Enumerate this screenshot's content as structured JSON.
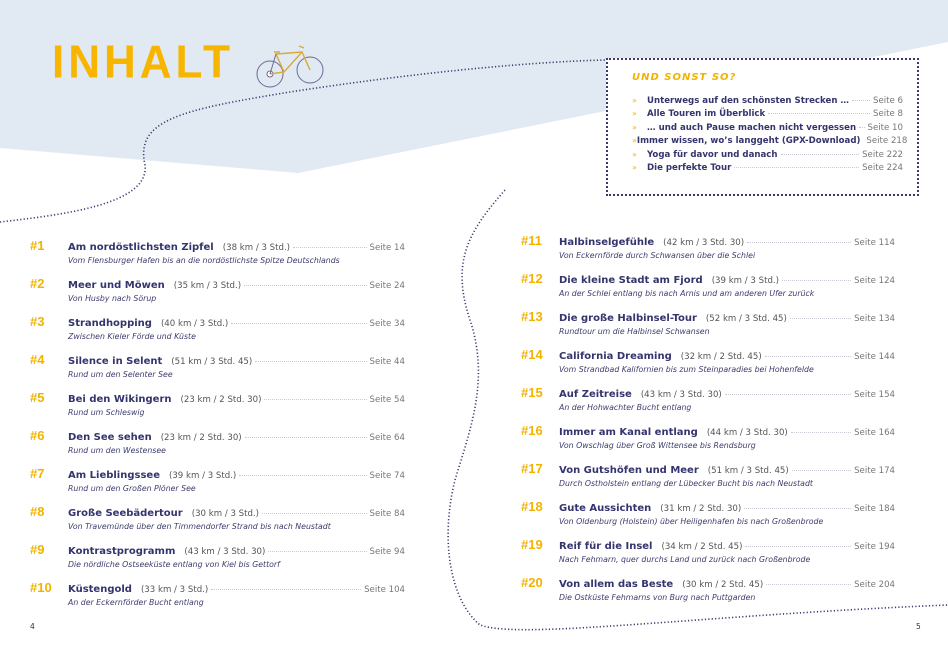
{
  "title": "INHALT",
  "colors": {
    "accent": "#f2b300",
    "text": "#34346e",
    "background_band": "#e1eaf2"
  },
  "illustration": "bicycle-icon",
  "extras": {
    "heading": "UND SONST SO?",
    "bullet": "»",
    "items": [
      {
        "title": "Unterwegs auf den schönsten Strecken …",
        "page": "Seite 6"
      },
      {
        "title": "Alle Touren im Überblick",
        "page": "Seite 8"
      },
      {
        "title": "… und auch Pause machen nicht vergessen",
        "page": "Seite 10"
      },
      {
        "title": "Immer wissen, wo’s langgeht (GPX-Download)",
        "page": "Seite 218"
      },
      {
        "title": "Yoga für davor und danach",
        "page": "Seite 222"
      },
      {
        "title": "Die perfekte Tour",
        "page": "Seite 224"
      }
    ]
  },
  "tours": [
    {
      "num": "#1",
      "title": "Am nordöstlichsten Zipfel",
      "info": "(38 km / 3 Std.)",
      "page": "Seite 14",
      "sub": "Vom Flensburger Hafen bis an die nordöstlichste Spitze Deutschlands"
    },
    {
      "num": "#2",
      "title": "Meer und Möwen",
      "info": "(35 km / 3 Std.)",
      "page": "Seite 24",
      "sub": "Von Husby nach Sörup"
    },
    {
      "num": "#3",
      "title": "Strandhopping",
      "info": "(40 km / 3 Std.)",
      "page": "Seite 34",
      "sub": "Zwischen Kieler Förde und Küste"
    },
    {
      "num": "#4",
      "title": "Silence in Selent",
      "info": "(51 km / 3 Std. 45)",
      "page": "Seite 44",
      "sub": "Rund um den Selenter See"
    },
    {
      "num": "#5",
      "title": "Bei den Wikingern",
      "info": "(23 km / 2 Std. 30)",
      "page": "Seite 54",
      "sub": "Rund um Schleswig"
    },
    {
      "num": "#6",
      "title": "Den See sehen",
      "info": "(23 km / 2 Std. 30)",
      "page": "Seite 64",
      "sub": "Rund um den Westensee"
    },
    {
      "num": "#7",
      "title": "Am Lieblingssee",
      "info": "(39 km / 3 Std.)",
      "page": "Seite 74",
      "sub": "Rund um den Großen Plöner See"
    },
    {
      "num": "#8",
      "title": "Große Seebädertour",
      "info": "(30 km / 3 Std.)",
      "page": "Seite 84",
      "sub": "Von Travemünde über den Timmendorfer Strand bis nach Neustadt"
    },
    {
      "num": "#9",
      "title": "Kontrastprogramm",
      "info": "(43 km / 3 Std. 30)",
      "page": "Seite 94",
      "sub": "Die nördliche Ostseeküste entlang von Kiel bis Gettorf"
    },
    {
      "num": "#10",
      "title": "Küstengold",
      "info": "(33 km / 3 Std.)",
      "page": "Seite 104",
      "sub": "An der Eckernförder Bucht entlang"
    },
    {
      "num": "#11",
      "title": "Halbinselgefühle",
      "info": "(42 km / 3 Std. 30)",
      "page": "Seite 114",
      "sub": "Von Eckernförde durch Schwansen über die Schlei"
    },
    {
      "num": "#12",
      "title": "Die kleine Stadt am Fjord",
      "info": "(39 km / 3 Std.)",
      "page": "Seite 124",
      "sub": "An der Schlei entlang bis nach Arnis und am anderen Ufer zurück"
    },
    {
      "num": "#13",
      "title": "Die große Halbinsel-Tour",
      "info": "(52 km / 3 Std. 45)",
      "page": "Seite 134",
      "sub": "Rundtour um die Halbinsel Schwansen"
    },
    {
      "num": "#14",
      "title": "California Dreaming",
      "info": "(32 km / 2 Std. 45)",
      "page": "Seite 144",
      "sub": "Vom Strandbad Kalifornien bis zum Steinparadies bei Hohenfelde"
    },
    {
      "num": "#15",
      "title": "Auf Zeitreise",
      "info": "(43 km / 3 Std. 30)",
      "page": "Seite 154",
      "sub": "An der Hohwachter Bucht entlang"
    },
    {
      "num": "#16",
      "title": "Immer am Kanal entlang",
      "info": "(44 km / 3 Std. 30)",
      "page": "Seite 164",
      "sub": "Von Owschlag über Groß Wittensee bis Rendsburg"
    },
    {
      "num": "#17",
      "title": "Von Gutshöfen und Meer",
      "info": "(51 km / 3 Std. 45)",
      "page": "Seite 174",
      "sub": "Durch Ostholstein entlang der Lübecker Bucht bis nach Neustadt"
    },
    {
      "num": "#18",
      "title": "Gute Aussichten",
      "info": "(31 km / 2 Std. 30)",
      "page": "Seite 184",
      "sub": "Von Oldenburg (Holstein) über Heiligenhafen bis nach Großenbrode"
    },
    {
      "num": "#19",
      "title": "Reif für die Insel",
      "info": "(34 km / 2 Std. 45)",
      "page": "Seite 194",
      "sub": "Nach Fehmarn, quer durchs Land und zurück nach Großenbrode"
    },
    {
      "num": "#20",
      "title": "Von allem das Beste",
      "info": "(30 km / 2 Std. 45)",
      "page": "Seite 204",
      "sub": "Die Ostküste Fehmarns von Burg nach Puttgarden"
    }
  ],
  "page_left": "4",
  "page_right": "5"
}
